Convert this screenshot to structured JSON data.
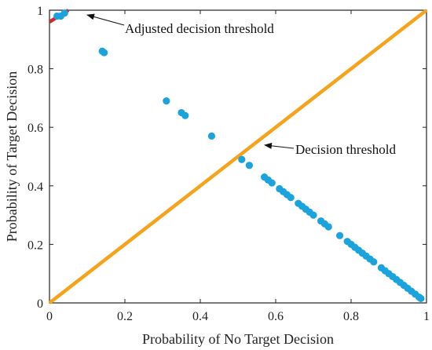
{
  "chart_data": {
    "type": "scatter",
    "title": "",
    "xlabel": "Probability of No Target Decision",
    "ylabel": "Probability of Target Decision",
    "xlim": [
      0,
      1
    ],
    "ylim": [
      0,
      1
    ],
    "grid": false,
    "legend": "none",
    "xticks": [
      "0",
      "0.2",
      "0.4",
      "0.6",
      "0.8",
      "1"
    ],
    "yticks": [
      "0",
      "0.2",
      "0.4",
      "0.6",
      "0.8",
      "1"
    ],
    "colors": {
      "points": "#1aa3dd",
      "decision_threshold": "#f5a31a",
      "adjusted_threshold": "#d42a2a",
      "axes": "#222222"
    },
    "decision_threshold": {
      "x": [
        0,
        1
      ],
      "y": [
        0,
        1
      ]
    },
    "adjusted_threshold": {
      "x": [
        0.0,
        0.05
      ],
      "y": [
        0.96,
        1.0
      ]
    },
    "points": [
      [
        0.02,
        0.98
      ],
      [
        0.03,
        0.98
      ],
      [
        0.04,
        0.99
      ],
      [
        0.14,
        0.86
      ],
      [
        0.145,
        0.855
      ],
      [
        0.31,
        0.69
      ],
      [
        0.35,
        0.65
      ],
      [
        0.36,
        0.64
      ],
      [
        0.43,
        0.57
      ],
      [
        0.51,
        0.49
      ],
      [
        0.53,
        0.47
      ],
      [
        0.57,
        0.43
      ],
      [
        0.58,
        0.42
      ],
      [
        0.59,
        0.41
      ],
      [
        0.61,
        0.39
      ],
      [
        0.62,
        0.38
      ],
      [
        0.63,
        0.37
      ],
      [
        0.64,
        0.36
      ],
      [
        0.66,
        0.34
      ],
      [
        0.67,
        0.33
      ],
      [
        0.68,
        0.32
      ],
      [
        0.69,
        0.31
      ],
      [
        0.7,
        0.3
      ],
      [
        0.72,
        0.28
      ],
      [
        0.73,
        0.27
      ],
      [
        0.74,
        0.26
      ],
      [
        0.77,
        0.23
      ],
      [
        0.79,
        0.21
      ],
      [
        0.8,
        0.2
      ],
      [
        0.81,
        0.19
      ],
      [
        0.82,
        0.18
      ],
      [
        0.83,
        0.17
      ],
      [
        0.84,
        0.16
      ],
      [
        0.85,
        0.15
      ],
      [
        0.86,
        0.14
      ],
      [
        0.88,
        0.12
      ],
      [
        0.89,
        0.11
      ],
      [
        0.9,
        0.1
      ],
      [
        0.91,
        0.09
      ],
      [
        0.92,
        0.08
      ],
      [
        0.93,
        0.07
      ],
      [
        0.94,
        0.06
      ],
      [
        0.95,
        0.05
      ],
      [
        0.96,
        0.04
      ],
      [
        0.97,
        0.03
      ],
      [
        0.98,
        0.02
      ],
      [
        0.985,
        0.015
      ]
    ],
    "annotations": [
      {
        "text": "Adjusted decision threshold",
        "target": [
          0.05,
          1.0
        ]
      },
      {
        "text": "Decision threshold",
        "target": [
          0.55,
          0.55
        ]
      }
    ]
  }
}
